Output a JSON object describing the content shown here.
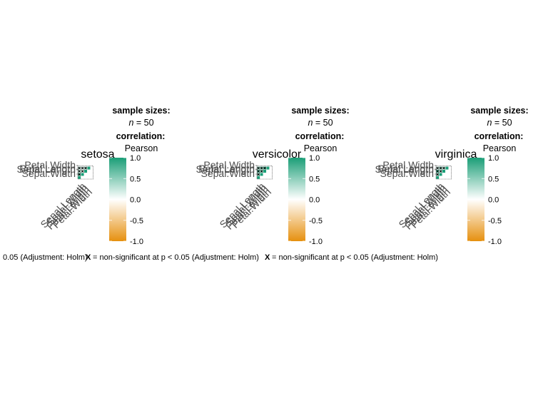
{
  "chart_data": [
    {
      "type": "heatmap",
      "title": "setosa",
      "variables": [
        "Sepal.Length",
        "Sepal.Width",
        "Petal.Length",
        "Petal.Width"
      ],
      "matrix": [
        [
          1.0,
          0.74,
          0.27,
          0.28
        ],
        [
          0.74,
          1.0,
          0.18,
          0.23
        ],
        [
          0.27,
          0.18,
          1.0,
          0.33
        ],
        [
          0.28,
          0.23,
          0.33,
          1.0
        ]
      ],
      "legend": {
        "sample_heading": "sample sizes:",
        "n_symbol": "n",
        "n_value": "= 50",
        "corr_heading": "correlation:",
        "corr_method": "Pearson",
        "ticks": [
          1.0,
          0.5,
          0.0,
          -0.5,
          -1.0
        ],
        "tick_labels": [
          "1.0",
          "0.5",
          "0.0",
          "-0.5",
          "-1.0"
        ],
        "range": [
          -1,
          1
        ]
      },
      "caption_visible": "0.05 (Adjustment: Holm)"
    },
    {
      "type": "heatmap",
      "title": "versicolor",
      "variables": [
        "Sepal.Length",
        "Sepal.Width",
        "Petal.Length",
        "Petal.Width"
      ],
      "matrix": [
        [
          1.0,
          0.53,
          0.75,
          0.55
        ],
        [
          0.53,
          1.0,
          0.56,
          0.66
        ],
        [
          0.75,
          0.56,
          1.0,
          0.79
        ],
        [
          0.55,
          0.66,
          0.79,
          1.0
        ]
      ],
      "legend": {
        "sample_heading": "sample sizes:",
        "n_symbol": "n",
        "n_value": "= 50",
        "corr_heading": "correlation:",
        "corr_method": "Pearson",
        "ticks": [
          1.0,
          0.5,
          0.0,
          -0.5,
          -1.0
        ],
        "tick_labels": [
          "1.0",
          "0.5",
          "0.0",
          "-0.5",
          "-1.0"
        ],
        "range": [
          -1,
          1
        ]
      },
      "caption_visible": "= non-significant at p < 0.05 (Adjustment: Holm)"
    },
    {
      "type": "heatmap",
      "title": "virginica",
      "variables": [
        "Sepal.Length",
        "Sepal.Width",
        "Petal.Length",
        "Petal.Width"
      ],
      "matrix": [
        [
          1.0,
          0.46,
          0.86,
          0.28
        ],
        [
          0.46,
          1.0,
          0.4,
          0.54
        ],
        [
          0.86,
          0.4,
          1.0,
          0.32
        ],
        [
          0.28,
          0.54,
          0.32,
          1.0
        ]
      ],
      "legend": {
        "sample_heading": "sample sizes:",
        "n_symbol": "n",
        "n_value": "= 50",
        "corr_heading": "correlation:",
        "corr_method": "Pearson",
        "ticks": [
          1.0,
          0.5,
          0.0,
          -0.5,
          -1.0
        ],
        "tick_labels": [
          "1.0",
          "0.5",
          "0.0",
          "-0.5",
          "-1.0"
        ],
        "range": [
          -1,
          1
        ]
      },
      "caption_visible": "= non-significant at p < 0.05 (Adjustment: Holm)"
    }
  ],
  "colors": {
    "high": "#1b9e77",
    "mid": "#ffffff",
    "low": "#e6900f",
    "cell_border": "#ffffff",
    "cross": "#000000",
    "text": "#000000",
    "axis_text": "#4d4d4d"
  },
  "caption_marker": "X"
}
